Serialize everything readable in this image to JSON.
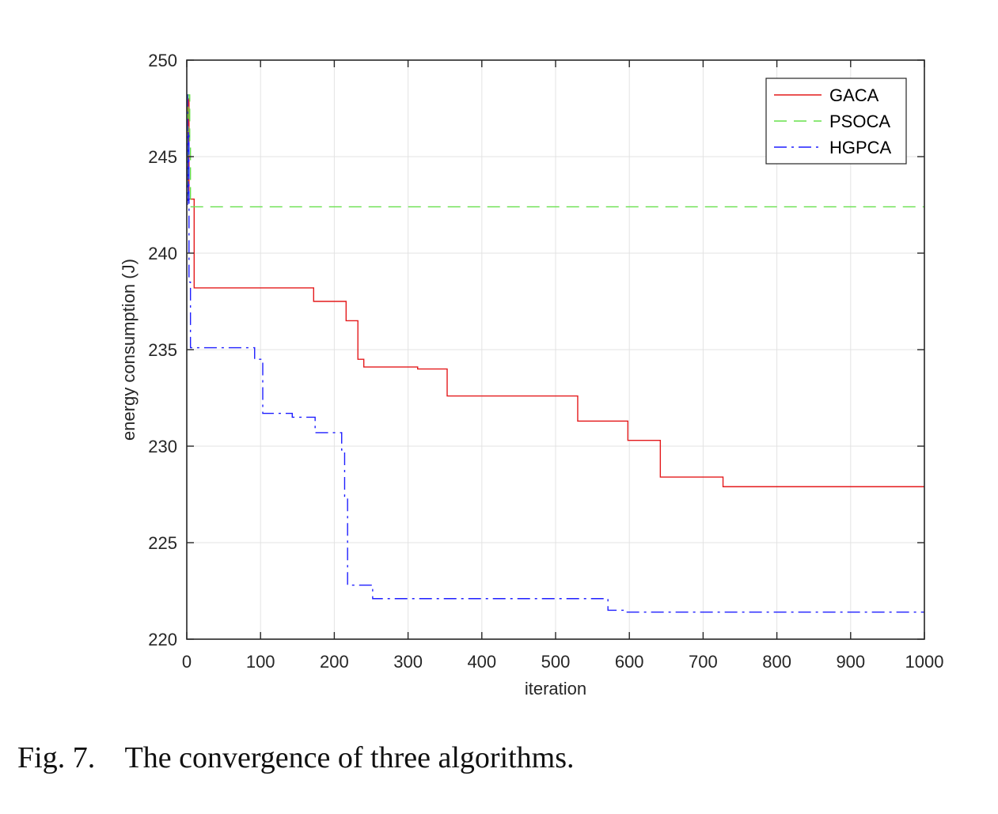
{
  "caption": "Fig. 7.    The convergence of three algorithms.",
  "chart_data": {
    "type": "line",
    "title": "",
    "xlabel": "iteration",
    "ylabel": "energy consumption (J)",
    "xlim": [
      0,
      1000
    ],
    "ylim": [
      220,
      250
    ],
    "xticks": [
      0,
      100,
      200,
      300,
      400,
      500,
      600,
      700,
      800,
      900,
      1000
    ],
    "yticks": [
      220,
      225,
      230,
      235,
      240,
      245,
      250
    ],
    "grid": true,
    "legend_position": "top-right",
    "series": [
      {
        "name": "GACA",
        "color": "#e41a1c",
        "style": "solid",
        "points": [
          [
            0,
            248.2
          ],
          [
            1,
            248.2
          ],
          [
            1,
            243.5
          ],
          [
            2,
            243.5
          ],
          [
            2,
            248.0
          ],
          [
            3,
            248.0
          ],
          [
            3,
            242.8
          ],
          [
            10,
            242.8
          ],
          [
            10,
            238.2
          ],
          [
            172,
            238.2
          ],
          [
            172,
            237.5
          ],
          [
            216,
            237.5
          ],
          [
            216,
            236.5
          ],
          [
            232,
            236.5
          ],
          [
            232,
            234.5
          ],
          [
            240,
            234.5
          ],
          [
            240,
            234.1
          ],
          [
            313,
            234.1
          ],
          [
            313,
            234.0
          ],
          [
            353,
            234.0
          ],
          [
            353,
            232.6
          ],
          [
            530,
            232.6
          ],
          [
            530,
            231.3
          ],
          [
            598,
            231.3
          ],
          [
            598,
            230.3
          ],
          [
            642,
            230.3
          ],
          [
            642,
            228.4
          ],
          [
            727,
            228.4
          ],
          [
            727,
            227.9
          ],
          [
            1000,
            227.9
          ]
        ]
      },
      {
        "name": "PSOCA",
        "color": "#66e04a",
        "style": "dashed",
        "points": [
          [
            0,
            248.2
          ],
          [
            1,
            248.2
          ],
          [
            1,
            243.0
          ],
          [
            2,
            243.0
          ],
          [
            2,
            248.2
          ],
          [
            4,
            248.2
          ],
          [
            4,
            245.5
          ],
          [
            5,
            245.5
          ],
          [
            5,
            242.4
          ],
          [
            1000,
            242.4
          ]
        ]
      },
      {
        "name": "HGPCA",
        "color": "#1f1fff",
        "style": "dashdot",
        "points": [
          [
            0,
            248.2
          ],
          [
            1,
            248.2
          ],
          [
            1,
            242.5
          ],
          [
            2,
            242.5
          ],
          [
            2,
            246.3
          ],
          [
            3,
            246.3
          ],
          [
            3,
            238.5
          ],
          [
            5,
            238.5
          ],
          [
            5,
            235.1
          ],
          [
            92,
            235.1
          ],
          [
            92,
            234.5
          ],
          [
            103,
            234.5
          ],
          [
            103,
            231.7
          ],
          [
            143,
            231.7
          ],
          [
            143,
            231.5
          ],
          [
            174,
            231.5
          ],
          [
            174,
            230.7
          ],
          [
            210,
            230.7
          ],
          [
            210,
            229.8
          ],
          [
            214,
            229.8
          ],
          [
            214,
            227.4
          ],
          [
            216,
            227.4
          ],
          [
            216,
            227.3
          ],
          [
            218,
            227.3
          ],
          [
            218,
            222.8
          ],
          [
            252,
            222.8
          ],
          [
            252,
            222.1
          ],
          [
            571,
            222.1
          ],
          [
            571,
            221.5
          ],
          [
            597,
            221.5
          ],
          [
            597,
            221.4
          ],
          [
            1000,
            221.4
          ]
        ]
      }
    ]
  }
}
